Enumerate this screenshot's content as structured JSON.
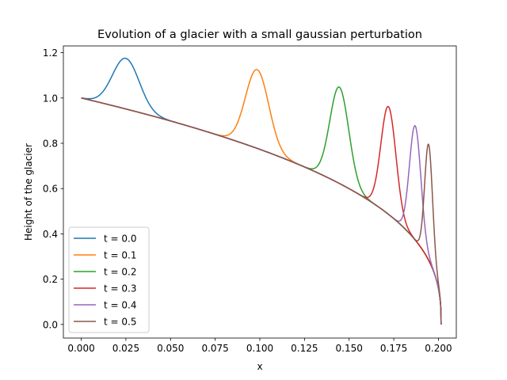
{
  "chart_data": {
    "type": "line",
    "title": "Evolution of a glacier with a small gaussian perturbation",
    "xlabel": "x",
    "ylabel": "Height of the glacier",
    "xlim": [
      -0.01,
      0.21
    ],
    "ylim": [
      -0.06,
      1.23
    ],
    "x_ticks": [
      "0.000",
      "0.025",
      "0.050",
      "0.075",
      "0.100",
      "0.125",
      "0.150",
      "0.175",
      "0.200"
    ],
    "y_ticks": [
      "0.0",
      "0.2",
      "0.4",
      "0.6",
      "0.8",
      "1.0",
      "1.2"
    ],
    "grid": false,
    "legend_position": "lower-left",
    "series": [
      {
        "name": "t = 0.0",
        "color": "#1f77b4",
        "peak_x": 0.025,
        "peak_height": 1.175
      },
      {
        "name": "t = 0.1",
        "color": "#ff7f0e",
        "peak_x": 0.0985,
        "peak_height": 1.125
      },
      {
        "name": "t = 0.2",
        "color": "#2ca02c",
        "peak_x": 0.1445,
        "peak_height": 1.048
      },
      {
        "name": "t = 0.3",
        "color": "#d62728",
        "peak_x": 0.172,
        "peak_height": 0.962
      },
      {
        "name": "t = 0.4",
        "color": "#9467bd",
        "peak_x": 0.187,
        "peak_height": 0.877
      },
      {
        "name": "t = 0.5",
        "color": "#8c564b",
        "peak_x": 0.1945,
        "peak_height": 0.795
      }
    ],
    "base_profile": {
      "x_start": 0.0,
      "x_end": 0.2015,
      "height_at_start": 1.0,
      "height_at_end": 0.0
    }
  }
}
